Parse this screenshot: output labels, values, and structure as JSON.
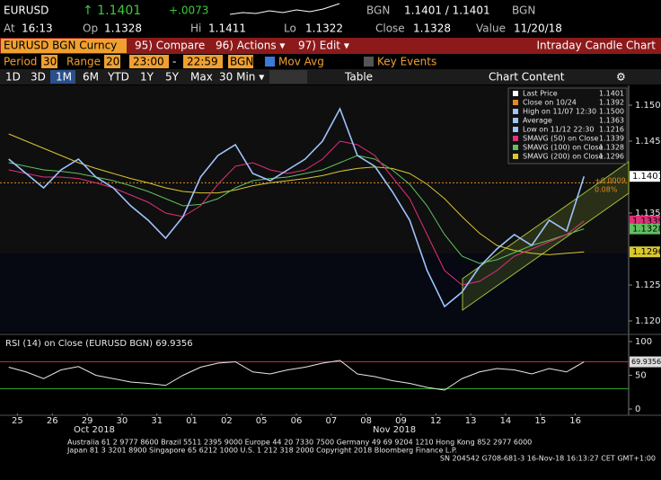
{
  "header": {
    "ticker": "EURUSD",
    "last": "↑ 1.1401",
    "change": "+.0073",
    "src1": "BGN",
    "bidask": "1.1401 / 1.1401",
    "src2": "BGN",
    "at_label": "At",
    "at": "16:13",
    "op_label": "Op",
    "op": "1.1328",
    "hi_label": "Hi",
    "hi": "1.1411",
    "lo_label": "Lo",
    "lo": "1.1322",
    "close_label": "Close",
    "close": "1.1328",
    "value_label": "Value",
    "value": "11/20/18"
  },
  "menu": {
    "security": "EURUSD BGN Curncy",
    "compare": "95) Compare",
    "actions": "96) Actions ▾",
    "edit": "97) Edit ▾",
    "title": "Intraday Candle Chart"
  },
  "settings": {
    "period_label": "Period",
    "period": "30",
    "range_label": "Range",
    "range": "20",
    "start": "23:00",
    "dash": "-",
    "end": "22:59",
    "source": "BGN",
    "mov_avg": "Mov Avg",
    "key_events": "Key Events"
  },
  "toolbar": {
    "buttons": [
      "1D",
      "3D",
      "1M",
      "6M",
      "YTD",
      "1Y",
      "5Y",
      "Max",
      "30 Min ▾"
    ],
    "table": "Table",
    "chart_content": "Chart Content"
  },
  "chart_data": {
    "type": "line",
    "categories": [
      "25",
      null,
      "26",
      null,
      "29",
      null,
      "30",
      null,
      "31",
      null,
      "01",
      null,
      "02",
      null,
      "05",
      null,
      "06",
      null,
      "07",
      null,
      "08",
      null,
      "09",
      null,
      "12",
      null,
      "13",
      null,
      "14",
      null,
      "15",
      null,
      "16",
      null
    ],
    "month_labels": [
      "Oct 2018",
      "Nov 2018"
    ],
    "series": [
      {
        "name": "Last Price",
        "color": "#9fc4ff",
        "values": [
          1.1425,
          1.1405,
          1.1385,
          1.141,
          1.1425,
          1.14,
          1.1385,
          1.136,
          1.134,
          1.1315,
          1.1345,
          1.14,
          1.143,
          1.1445,
          1.1405,
          1.1395,
          1.141,
          1.1425,
          1.145,
          1.1495,
          1.143,
          1.1415,
          1.138,
          1.134,
          1.127,
          1.122,
          1.124,
          1.1275,
          1.13,
          1.132,
          1.1305,
          1.134,
          1.1325,
          1.1401
        ]
      },
      {
        "name": "SMAVG (50)",
        "color": "#e0307a",
        "values": [
          1.141,
          1.1405,
          1.14,
          1.14,
          1.1398,
          1.1392,
          1.1385,
          1.1375,
          1.1365,
          1.135,
          1.1345,
          1.136,
          1.139,
          1.1415,
          1.142,
          1.141,
          1.1405,
          1.141,
          1.1425,
          1.145,
          1.1445,
          1.143,
          1.14,
          1.137,
          1.132,
          1.127,
          1.125,
          1.1255,
          1.127,
          1.129,
          1.13,
          1.131,
          1.132,
          1.1339
        ]
      },
      {
        "name": "SMAVG (100)",
        "color": "#60c060",
        "values": [
          1.142,
          1.1415,
          1.141,
          1.1408,
          1.1405,
          1.14,
          1.1395,
          1.1388,
          1.138,
          1.137,
          1.136,
          1.1362,
          1.137,
          1.1385,
          1.1395,
          1.1398,
          1.14,
          1.1405,
          1.141,
          1.142,
          1.143,
          1.1425,
          1.141,
          1.139,
          1.136,
          1.132,
          1.129,
          1.128,
          1.1285,
          1.1295,
          1.1305,
          1.1312,
          1.132,
          1.1328
        ]
      },
      {
        "name": "SMAVG (200)",
        "color": "#d8c830",
        "values": [
          1.146,
          1.145,
          1.144,
          1.143,
          1.142,
          1.1412,
          1.1405,
          1.1398,
          1.1392,
          1.1385,
          1.138,
          1.1378,
          1.1378,
          1.1382,
          1.1388,
          1.1392,
          1.1395,
          1.1398,
          1.1402,
          1.1408,
          1.1412,
          1.1414,
          1.1412,
          1.1405,
          1.139,
          1.137,
          1.1345,
          1.1322,
          1.1305,
          1.1298,
          1.1294,
          1.1292,
          1.1294,
          1.1296
        ]
      }
    ],
    "ylim": [
      1.118,
      1.153
    ],
    "yticks": [
      {
        "value": 1.15,
        "label": "1.1500"
      },
      {
        "value": 1.145,
        "label": "1.1450"
      },
      {
        "value": 1.135,
        "label": "1.1350"
      },
      {
        "value": 1.125,
        "label": "1.1250"
      },
      {
        "value": 1.12,
        "label": "1.1200"
      }
    ],
    "reference": {
      "value": 1.1392,
      "color": "#e08a20"
    },
    "annotations": [
      "+0.0009",
      "0.08%"
    ],
    "legend": [
      {
        "name": "Last Price",
        "value": "1.1401",
        "color": "#ffffff"
      },
      {
        "name": "Close on 10/24",
        "value": "1.1392",
        "color": "#e08a20"
      },
      {
        "name": "High on 11/07 12:30",
        "value": "1.1500",
        "color": "#9fc4ff"
      },
      {
        "name": "Average",
        "value": "1.1363",
        "color": "#9fc4ff"
      },
      {
        "name": "Low on 11/12 22:30",
        "value": "1.1216",
        "color": "#9fc4ff"
      },
      {
        "name": "SMAVG (50)  on Close",
        "value": "1.1339",
        "color": "#e0307a"
      },
      {
        "name": "SMAVG (100)  on Close",
        "value": "1.1328",
        "color": "#60c060"
      },
      {
        "name": "SMAVG (200)  on Close",
        "value": "1.1296",
        "color": "#d8c830"
      }
    ],
    "rsi": {
      "title": "RSI (14) on Close (EURUSD BGN) 69.9356",
      "color": "#e8e8e8",
      "values": [
        62,
        55,
        45,
        58,
        63,
        50,
        45,
        40,
        38,
        35,
        50,
        62,
        68,
        70,
        55,
        52,
        58,
        62,
        68,
        72,
        52,
        48,
        42,
        38,
        32,
        28,
        45,
        55,
        60,
        58,
        52,
        60,
        55,
        69.9356
      ],
      "ylim": [
        0,
        100
      ],
      "yticks": [
        100,
        50,
        0
      ],
      "levels": [
        {
          "value": 70,
          "color": "#c03030"
        },
        {
          "value": 30,
          "color": "#30a030"
        }
      ]
    }
  },
  "footer": [
    "Australia 61 2 9777 8600 Brazil 5511 2395 9000 Europe 44 20 7330 7500 Germany 49 69 9204 1210 Hong Kong 852 2977 6000",
    "Japan 81 3 3201 8900       Singapore 65 6212 1000       U.S. 1 212 318 2000             Copyright 2018 Bloomberg Finance L.P.",
    "SN 204542 G708-681-3 16-Nov-18 16:13:27 CET  GMT+1:00"
  ]
}
